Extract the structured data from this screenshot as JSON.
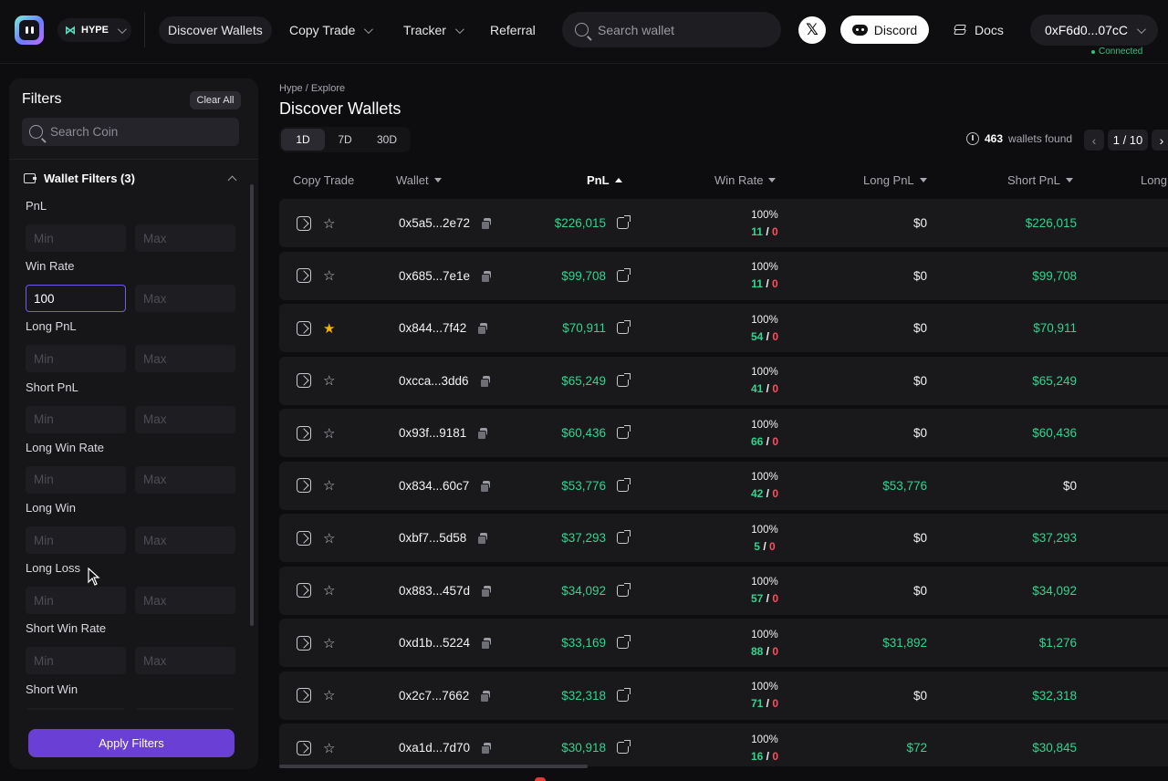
{
  "nav": {
    "chain": "HYPE",
    "items": [
      "Discover Wallets",
      "Copy Trade",
      "Tracker",
      "Referral"
    ],
    "search_placeholder": "Search wallet",
    "x_label": "𝕏",
    "discord": "Discord",
    "docs": "Docs",
    "wallet": "0xF6d0...07cC",
    "status": "Connected"
  },
  "sidebar": {
    "title": "Filters",
    "clear": "Clear All",
    "coin_search_placeholder": "Search Coin",
    "section": "Wallet Filters (3)",
    "min_placeholder": "Min",
    "max_placeholder": "Max",
    "filters": [
      {
        "label": "PnL",
        "min": "",
        "max": ""
      },
      {
        "label": "Win Rate",
        "min": "100",
        "max": ""
      },
      {
        "label": "Long PnL",
        "min": "",
        "max": ""
      },
      {
        "label": "Short PnL",
        "min": "",
        "max": ""
      },
      {
        "label": "Long Win Rate",
        "min": "",
        "max": ""
      },
      {
        "label": "Long Win",
        "min": "",
        "max": ""
      },
      {
        "label": "Long Loss",
        "min": "",
        "max": ""
      },
      {
        "label": "Short Win Rate",
        "min": "",
        "max": ""
      },
      {
        "label": "Short Win",
        "min": "",
        "max": ""
      }
    ],
    "apply": "Apply Filters"
  },
  "main": {
    "breadcrumb": "Hype / Explore",
    "title": "Discover Wallets",
    "periods": [
      "1D",
      "7D",
      "30D"
    ],
    "active_period": "1D",
    "found_count": "463",
    "found_label": "wallets found",
    "page": "1 / 10",
    "columns": [
      "Copy Trade",
      "Wallet",
      "PnL",
      "Win Rate",
      "Long PnL",
      "Short PnL",
      "Long"
    ],
    "rows": [
      {
        "wallet": "0x5a5...2e72",
        "pnl": "$226,015",
        "winrate": "100%",
        "wins": "11",
        "losses": "0",
        "long_pnl": "$0",
        "short_pnl": "$226,015",
        "starred": false
      },
      {
        "wallet": "0x685...7e1e",
        "pnl": "$99,708",
        "winrate": "100%",
        "wins": "11",
        "losses": "0",
        "long_pnl": "$0",
        "short_pnl": "$99,708",
        "starred": false
      },
      {
        "wallet": "0x844...7f42",
        "pnl": "$70,911",
        "winrate": "100%",
        "wins": "54",
        "losses": "0",
        "long_pnl": "$0",
        "short_pnl": "$70,911",
        "starred": true
      },
      {
        "wallet": "0xcca...3dd6",
        "pnl": "$65,249",
        "winrate": "100%",
        "wins": "41",
        "losses": "0",
        "long_pnl": "$0",
        "short_pnl": "$65,249",
        "starred": false
      },
      {
        "wallet": "0x93f...9181",
        "pnl": "$60,436",
        "winrate": "100%",
        "wins": "66",
        "losses": "0",
        "long_pnl": "$0",
        "short_pnl": "$60,436",
        "starred": false
      },
      {
        "wallet": "0x834...60c7",
        "pnl": "$53,776",
        "winrate": "100%",
        "wins": "42",
        "losses": "0",
        "long_pnl": "$53,776",
        "short_pnl": "$0",
        "starred": false
      },
      {
        "wallet": "0xbf7...5d58",
        "pnl": "$37,293",
        "winrate": "100%",
        "wins": "5",
        "losses": "0",
        "long_pnl": "$0",
        "short_pnl": "$37,293",
        "starred": false
      },
      {
        "wallet": "0x883...457d",
        "pnl": "$34,092",
        "winrate": "100%",
        "wins": "57",
        "losses": "0",
        "long_pnl": "$0",
        "short_pnl": "$34,092",
        "starred": false
      },
      {
        "wallet": "0xd1b...5224",
        "pnl": "$33,169",
        "winrate": "100%",
        "wins": "88",
        "losses": "0",
        "long_pnl": "$31,892",
        "short_pnl": "$1,276",
        "starred": false
      },
      {
        "wallet": "0x2c7...7662",
        "pnl": "$32,318",
        "winrate": "100%",
        "wins": "71",
        "losses": "0",
        "long_pnl": "$0",
        "short_pnl": "$32,318",
        "starred": false
      },
      {
        "wallet": "0xa1d...7d70",
        "pnl": "$30,918",
        "winrate": "100%",
        "wins": "16",
        "losses": "0",
        "long_pnl": "$72",
        "short_pnl": "$30,845",
        "starred": false
      }
    ]
  },
  "colors": {
    "accent": "#6a3fd6",
    "positive": "#2fd58f",
    "negative": "#ff4d5e",
    "star": "#f5b400"
  }
}
